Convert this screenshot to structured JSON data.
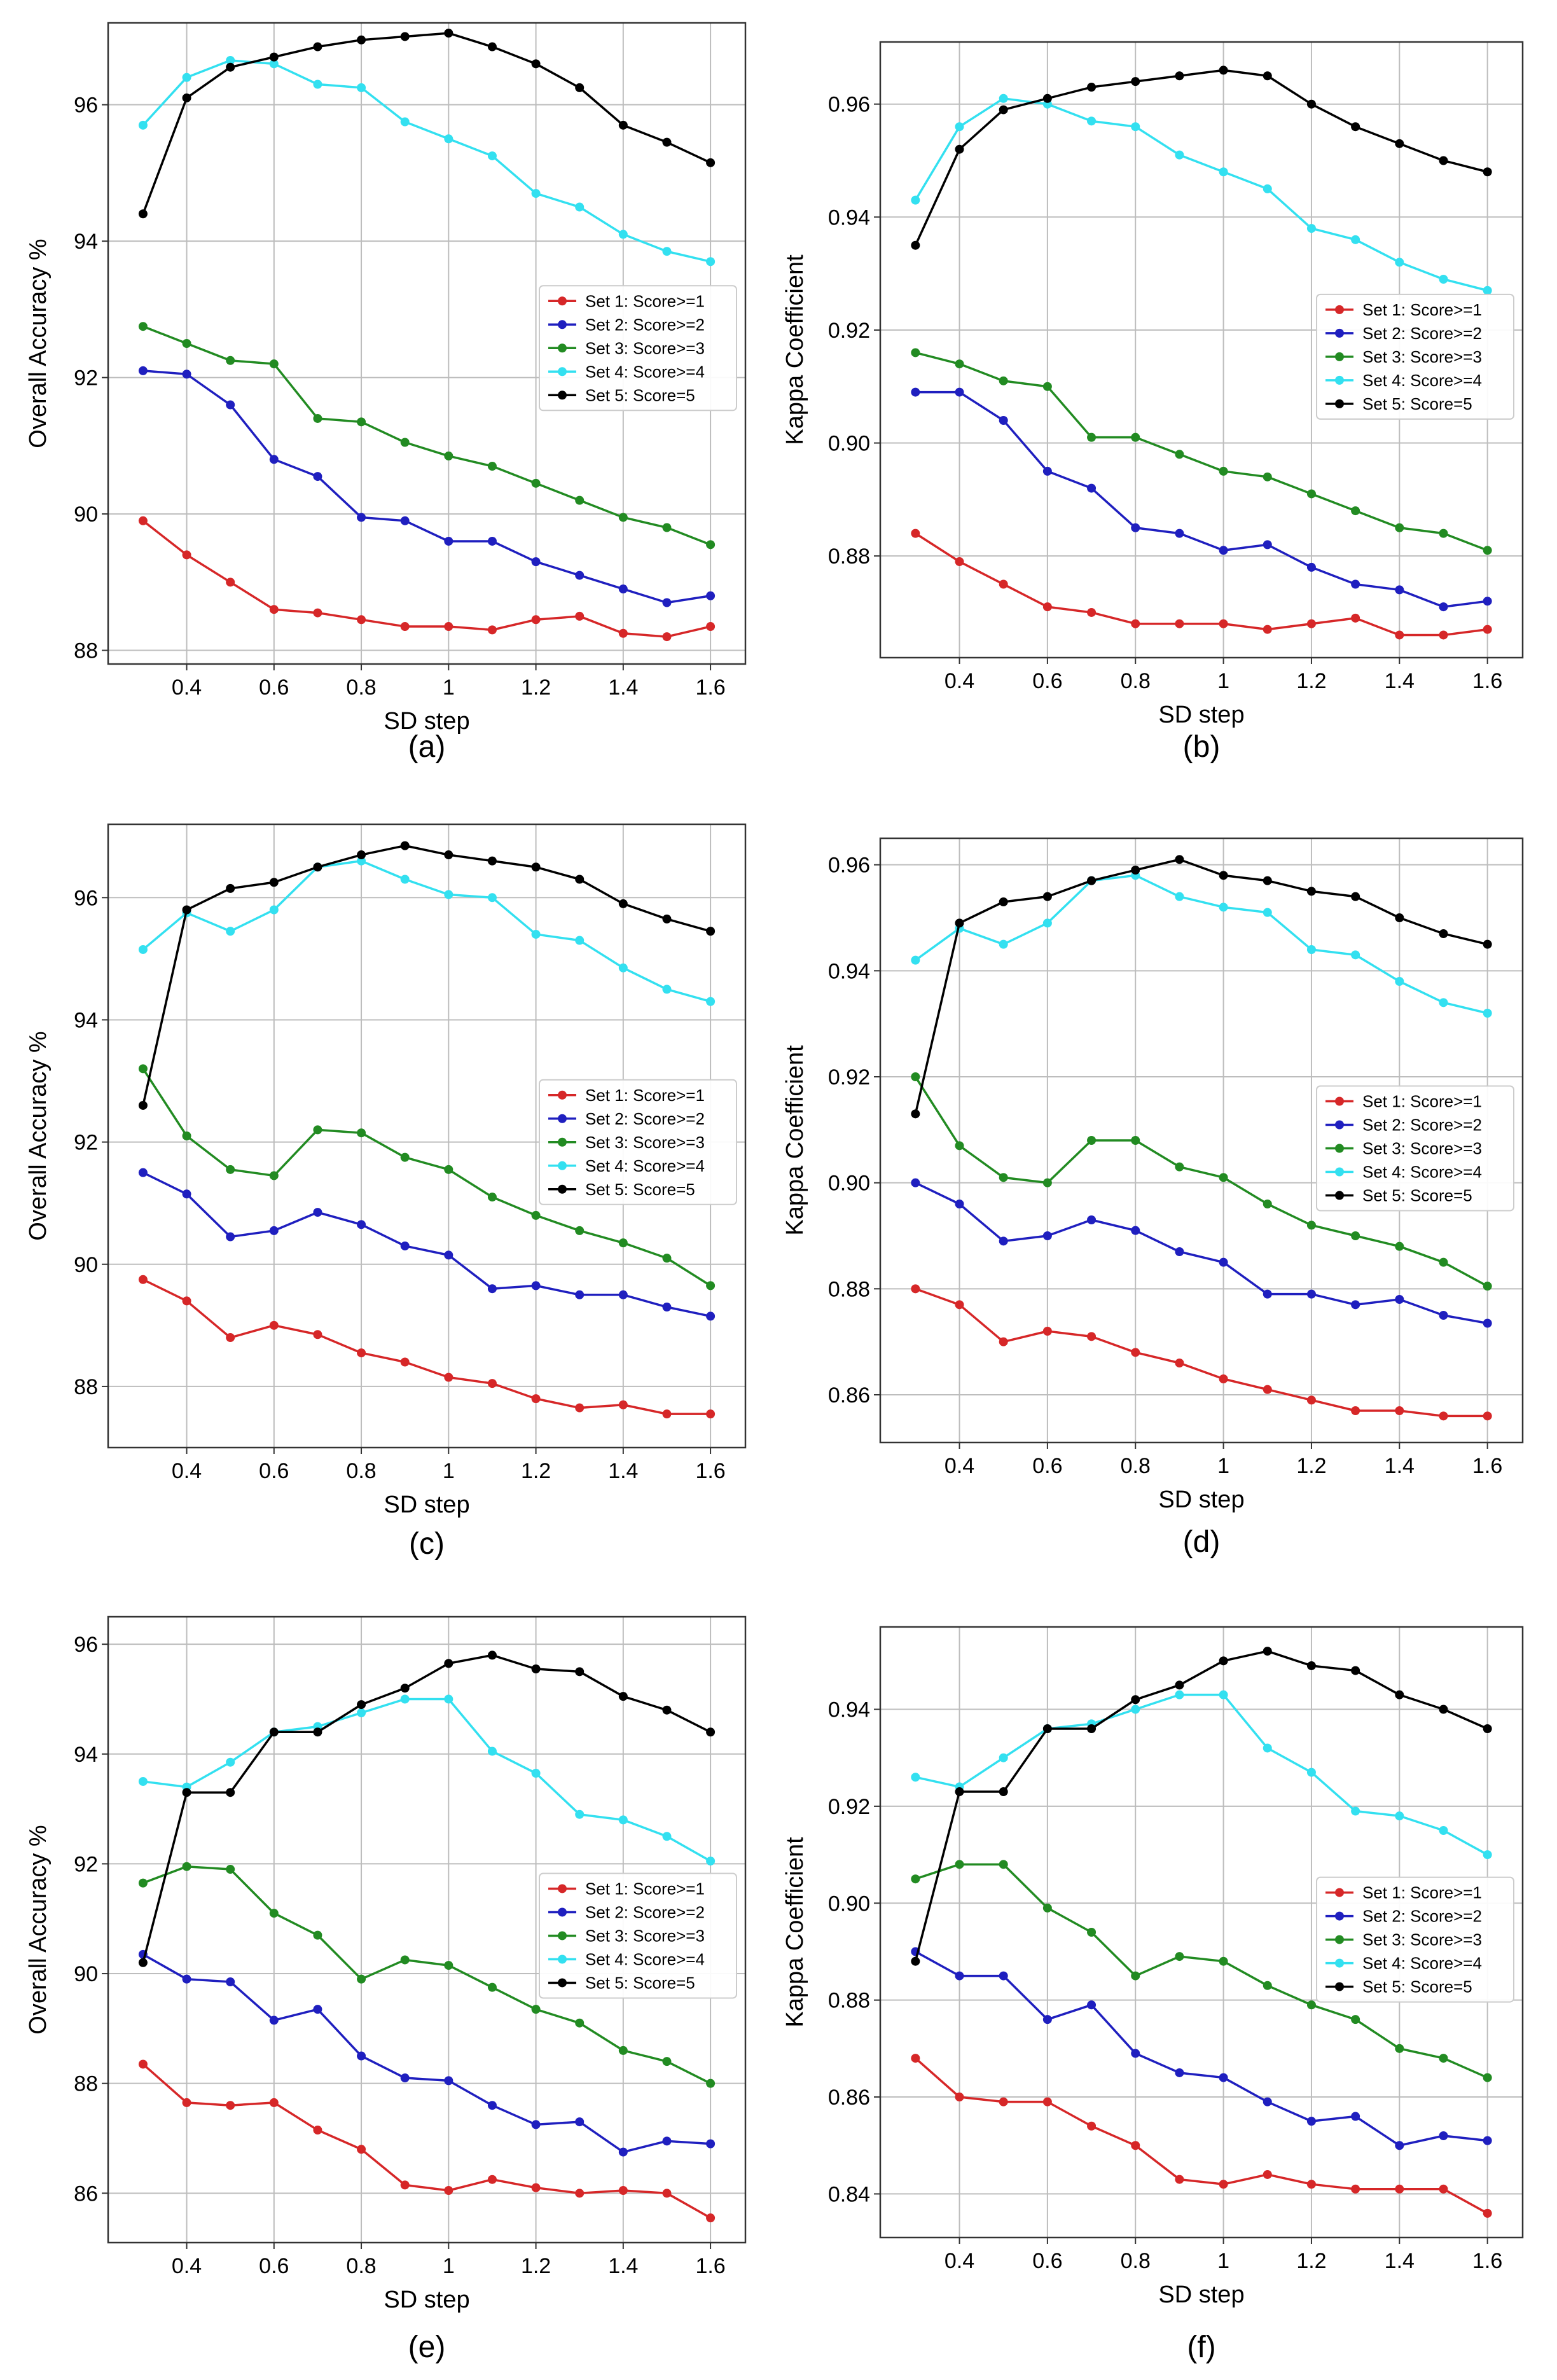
{
  "figure": {
    "xlabel": "SD step",
    "x_tick_labels": [
      "0.4",
      "0.6",
      "0.8",
      "1",
      "1.2",
      "1.4",
      "1.6"
    ],
    "legend_labels": [
      "Set 1: Score>=1",
      "Set 2: Score>=2",
      "Set 3: Score>=3",
      "Set 4: Score>=4",
      "Set 5: Score=5"
    ],
    "series_colors": [
      "#d62728",
      "#1f1fbf",
      "#228b22",
      "#33e0f0",
      "#000000"
    ]
  },
  "chart_data": [
    {
      "id": "a",
      "type": "line",
      "caption": "(a)",
      "xlabel": "SD step",
      "ylabel": "Overall Accuracy %",
      "x": [
        0.3,
        0.4,
        0.5,
        0.6,
        0.7,
        0.8,
        0.9,
        1.0,
        1.1,
        1.2,
        1.3,
        1.4,
        1.5,
        1.6
      ],
      "xlim": [
        0.22,
        1.68
      ],
      "ylim": [
        87.8,
        97.2
      ],
      "yticks": [
        88,
        90,
        92,
        94,
        96
      ],
      "ytick_labels": [
        "88",
        "90",
        "92",
        "94",
        "96"
      ],
      "legend_position": "center-right",
      "series": [
        {
          "name": "Set 1: Score>=1",
          "values": [
            89.9,
            89.4,
            89.0,
            88.6,
            88.55,
            88.45,
            88.35,
            88.35,
            88.3,
            88.45,
            88.5,
            88.25,
            88.2,
            88.35
          ]
        },
        {
          "name": "Set 2: Score>=2",
          "values": [
            92.1,
            92.05,
            91.6,
            90.8,
            90.55,
            89.95,
            89.9,
            89.6,
            89.6,
            89.3,
            89.1,
            88.9,
            88.7,
            88.8
          ]
        },
        {
          "name": "Set 3: Score>=3",
          "values": [
            92.75,
            92.5,
            92.25,
            92.2,
            91.4,
            91.35,
            91.05,
            90.85,
            90.7,
            90.45,
            90.2,
            89.95,
            89.8,
            89.55
          ]
        },
        {
          "name": "Set 4: Score>=4",
          "values": [
            95.7,
            96.4,
            96.65,
            96.6,
            96.3,
            96.25,
            95.75,
            95.5,
            95.25,
            94.7,
            94.5,
            94.1,
            93.85,
            93.7
          ]
        },
        {
          "name": "Set 5: Score=5",
          "values": [
            94.4,
            96.1,
            96.55,
            96.7,
            96.85,
            96.95,
            97.0,
            97.05,
            96.85,
            96.6,
            96.25,
            95.7,
            95.45,
            95.15
          ]
        }
      ]
    },
    {
      "id": "b",
      "type": "line",
      "caption": "(b)",
      "xlabel": "SD step",
      "ylabel": "Kappa Coefficient",
      "x": [
        0.3,
        0.4,
        0.5,
        0.6,
        0.7,
        0.8,
        0.9,
        1.0,
        1.1,
        1.2,
        1.3,
        1.4,
        1.5,
        1.6
      ],
      "xlim": [
        0.22,
        1.68
      ],
      "ylim": [
        0.862,
        0.971
      ],
      "yticks": [
        0.88,
        0.9,
        0.92,
        0.94,
        0.96
      ],
      "ytick_labels": [
        "0.88",
        "0.90",
        "0.92",
        "0.94",
        "0.96"
      ],
      "legend_position": "center-right",
      "series": [
        {
          "name": "Set 1: Score>=1",
          "values": [
            0.884,
            0.879,
            0.875,
            0.871,
            0.87,
            0.868,
            0.868,
            0.868,
            0.867,
            0.868,
            0.869,
            0.866,
            0.866,
            0.867
          ]
        },
        {
          "name": "Set 2: Score>=2",
          "values": [
            0.909,
            0.909,
            0.904,
            0.895,
            0.892,
            0.885,
            0.884,
            0.881,
            0.882,
            0.878,
            0.875,
            0.874,
            0.871,
            0.872
          ]
        },
        {
          "name": "Set 3: Score>=3",
          "values": [
            0.916,
            0.914,
            0.911,
            0.91,
            0.901,
            0.901,
            0.898,
            0.895,
            0.894,
            0.891,
            0.888,
            0.885,
            0.884,
            0.881
          ]
        },
        {
          "name": "Set 4: Score>=4",
          "values": [
            0.943,
            0.956,
            0.961,
            0.96,
            0.957,
            0.956,
            0.951,
            0.948,
            0.945,
            0.938,
            0.936,
            0.932,
            0.929,
            0.927
          ]
        },
        {
          "name": "Set 5: Score=5",
          "values": [
            0.935,
            0.952,
            0.959,
            0.961,
            0.963,
            0.964,
            0.965,
            0.966,
            0.965,
            0.96,
            0.956,
            0.953,
            0.95,
            0.948
          ]
        }
      ]
    },
    {
      "id": "c",
      "type": "line",
      "caption": "(c)",
      "xlabel": "SD step",
      "ylabel": "Overall Accuracy %",
      "x": [
        0.3,
        0.4,
        0.5,
        0.6,
        0.7,
        0.8,
        0.9,
        1.0,
        1.1,
        1.2,
        1.3,
        1.4,
        1.5,
        1.6
      ],
      "xlim": [
        0.22,
        1.68
      ],
      "ylim": [
        87.0,
        97.2
      ],
      "yticks": [
        88,
        90,
        92,
        94,
        96
      ],
      "ytick_labels": [
        "88",
        "90",
        "92",
        "94",
        "96"
      ],
      "legend_position": "center-right",
      "series": [
        {
          "name": "Set 1: Score>=1",
          "values": [
            89.75,
            89.4,
            88.8,
            89.0,
            88.85,
            88.55,
            88.4,
            88.15,
            88.05,
            87.8,
            87.65,
            87.7,
            87.55,
            87.55
          ]
        },
        {
          "name": "Set 2: Score>=2",
          "values": [
            91.5,
            91.15,
            90.45,
            90.55,
            90.85,
            90.65,
            90.3,
            90.15,
            89.6,
            89.65,
            89.5,
            89.5,
            89.3,
            89.15
          ]
        },
        {
          "name": "Set 3: Score>=3",
          "values": [
            93.2,
            92.1,
            91.55,
            91.45,
            92.2,
            92.15,
            91.75,
            91.55,
            91.1,
            90.8,
            90.55,
            90.35,
            90.1,
            89.65
          ]
        },
        {
          "name": "Set 4: Score>=4",
          "values": [
            95.15,
            95.75,
            95.45,
            95.8,
            96.5,
            96.6,
            96.3,
            96.05,
            96.0,
            95.4,
            95.3,
            94.85,
            94.5,
            94.3
          ]
        },
        {
          "name": "Set 5: Score=5",
          "values": [
            92.6,
            95.8,
            96.15,
            96.25,
            96.5,
            96.7,
            96.85,
            96.7,
            96.6,
            96.5,
            96.3,
            95.9,
            95.65,
            95.45
          ]
        }
      ]
    },
    {
      "id": "d",
      "type": "line",
      "caption": "(d)",
      "xlabel": "SD step",
      "ylabel": "Kappa Coefficient",
      "x": [
        0.3,
        0.4,
        0.5,
        0.6,
        0.7,
        0.8,
        0.9,
        1.0,
        1.1,
        1.2,
        1.3,
        1.4,
        1.5,
        1.6
      ],
      "xlim": [
        0.22,
        1.68
      ],
      "ylim": [
        0.851,
        0.965
      ],
      "yticks": [
        0.86,
        0.88,
        0.9,
        0.92,
        0.94,
        0.96
      ],
      "ytick_labels": [
        "0.86",
        "0.88",
        "0.90",
        "0.92",
        "0.94",
        "0.96"
      ],
      "legend_position": "center-right",
      "series": [
        {
          "name": "Set 1: Score>=1",
          "values": [
            0.88,
            0.877,
            0.87,
            0.872,
            0.871,
            0.868,
            0.866,
            0.863,
            0.861,
            0.859,
            0.857,
            0.857,
            0.856,
            0.856
          ]
        },
        {
          "name": "Set 2: Score>=2",
          "values": [
            0.9,
            0.896,
            0.889,
            0.89,
            0.893,
            0.891,
            0.887,
            0.885,
            0.879,
            0.879,
            0.877,
            0.878,
            0.875,
            0.8735
          ]
        },
        {
          "name": "Set 3: Score>=3",
          "values": [
            0.92,
            0.907,
            0.901,
            0.9,
            0.908,
            0.908,
            0.903,
            0.901,
            0.896,
            0.892,
            0.89,
            0.888,
            0.885,
            0.8805
          ]
        },
        {
          "name": "Set 4: Score>=4",
          "values": [
            0.942,
            0.948,
            0.945,
            0.949,
            0.957,
            0.958,
            0.954,
            0.952,
            0.951,
            0.944,
            0.943,
            0.938,
            0.934,
            0.932
          ]
        },
        {
          "name": "Set 5: Score=5",
          "values": [
            0.913,
            0.949,
            0.953,
            0.954,
            0.957,
            0.959,
            0.961,
            0.958,
            0.957,
            0.955,
            0.954,
            0.95,
            0.947,
            0.945
          ]
        }
      ]
    },
    {
      "id": "e",
      "type": "line",
      "caption": "(e)",
      "xlabel": "SD step",
      "ylabel": "Overall Accuracy %",
      "x": [
        0.3,
        0.4,
        0.5,
        0.6,
        0.7,
        0.8,
        0.9,
        1.0,
        1.1,
        1.2,
        1.3,
        1.4,
        1.5,
        1.6
      ],
      "xlim": [
        0.22,
        1.68
      ],
      "ylim": [
        85.1,
        96.5
      ],
      "yticks": [
        86,
        88,
        90,
        92,
        94,
        96
      ],
      "ytick_labels": [
        "86",
        "88",
        "90",
        "92",
        "94",
        "96"
      ],
      "legend_position": "center-right",
      "series": [
        {
          "name": "Set 1: Score>=1",
          "values": [
            88.35,
            87.65,
            87.6,
            87.65,
            87.15,
            86.8,
            86.15,
            86.05,
            86.25,
            86.1,
            86.0,
            86.05,
            86.0,
            85.55
          ]
        },
        {
          "name": "Set 2: Score>=2",
          "values": [
            90.35,
            89.9,
            89.85,
            89.15,
            89.35,
            88.5,
            88.1,
            88.05,
            87.6,
            87.25,
            87.3,
            86.75,
            86.95,
            86.9
          ]
        },
        {
          "name": "Set 3: Score>=3",
          "values": [
            91.65,
            91.95,
            91.9,
            91.1,
            90.7,
            89.9,
            90.25,
            90.15,
            89.75,
            89.35,
            89.1,
            88.6,
            88.4,
            88.0
          ]
        },
        {
          "name": "Set 4: Score>=4",
          "values": [
            93.5,
            93.4,
            93.85,
            94.4,
            94.5,
            94.75,
            95.0,
            95.0,
            94.05,
            93.65,
            92.9,
            92.8,
            92.5,
            92.05
          ]
        },
        {
          "name": "Set 5: Score=5",
          "values": [
            90.2,
            93.3,
            93.3,
            94.4,
            94.4,
            94.9,
            95.2,
            95.65,
            95.8,
            95.55,
            95.5,
            95.05,
            94.8,
            94.4
          ]
        }
      ]
    },
    {
      "id": "f",
      "type": "line",
      "caption": "(f)",
      "xlabel": "SD step",
      "ylabel": "Kappa Coefficient",
      "x": [
        0.3,
        0.4,
        0.5,
        0.6,
        0.7,
        0.8,
        0.9,
        1.0,
        1.1,
        1.2,
        1.3,
        1.4,
        1.5,
        1.6
      ],
      "xlim": [
        0.22,
        1.68
      ],
      "ylim": [
        0.831,
        0.957
      ],
      "yticks": [
        0.84,
        0.86,
        0.88,
        0.9,
        0.92,
        0.94
      ],
      "ytick_labels": [
        "0.84",
        "0.86",
        "0.88",
        "0.90",
        "0.92",
        "0.94"
      ],
      "legend_position": "center-right",
      "series": [
        {
          "name": "Set 1: Score>=1",
          "values": [
            0.868,
            0.86,
            0.859,
            0.859,
            0.854,
            0.85,
            0.843,
            0.842,
            0.844,
            0.842,
            0.841,
            0.841,
            0.841,
            0.836
          ]
        },
        {
          "name": "Set 2: Score>=2",
          "values": [
            0.89,
            0.885,
            0.885,
            0.876,
            0.879,
            0.869,
            0.865,
            0.864,
            0.859,
            0.855,
            0.856,
            0.85,
            0.852,
            0.851
          ]
        },
        {
          "name": "Set 3: Score>=3",
          "values": [
            0.905,
            0.908,
            0.908,
            0.899,
            0.894,
            0.885,
            0.889,
            0.888,
            0.883,
            0.879,
            0.876,
            0.87,
            0.868,
            0.864
          ]
        },
        {
          "name": "Set 4: Score>=4",
          "values": [
            0.926,
            0.924,
            0.93,
            0.936,
            0.937,
            0.94,
            0.943,
            0.943,
            0.932,
            0.927,
            0.919,
            0.918,
            0.915,
            0.91
          ]
        },
        {
          "name": "Set 5: Score=5",
          "values": [
            0.888,
            0.923,
            0.923,
            0.936,
            0.936,
            0.942,
            0.945,
            0.95,
            0.952,
            0.949,
            0.948,
            0.943,
            0.94,
            0.936
          ]
        }
      ]
    }
  ]
}
